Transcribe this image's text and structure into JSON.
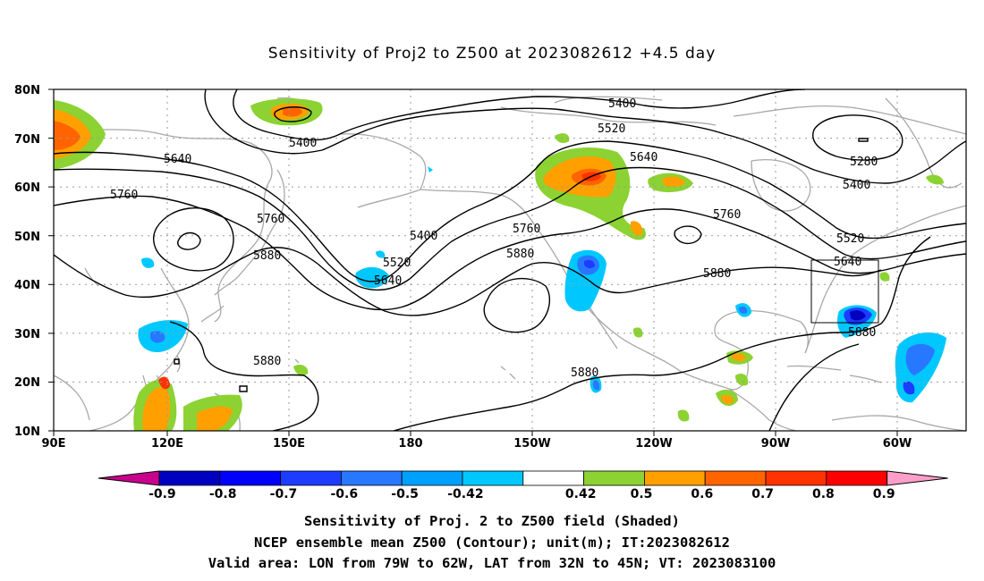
{
  "title": "Sensitivity of Proj2 to Z500 at 2023082612 +4.5 day",
  "lat_labels": [
    "80N",
    "70N",
    "60N",
    "50N",
    "40N",
    "30N",
    "20N",
    "10N"
  ],
  "lon_labels": [
    "90E",
    "120E",
    "150E",
    "180",
    "150W",
    "120W",
    "90W",
    "60W"
  ],
  "contour_labels": [
    {
      "text": "5400"
    },
    {
      "text": "5520"
    },
    {
      "text": "5640"
    },
    {
      "text": "5280"
    },
    {
      "text": "5400"
    },
    {
      "text": "5400"
    },
    {
      "text": "5640"
    },
    {
      "text": "5760"
    },
    {
      "text": "5760"
    },
    {
      "text": "5880"
    },
    {
      "text": "5400"
    },
    {
      "text": "5520"
    },
    {
      "text": "5640"
    },
    {
      "text": "5760"
    },
    {
      "text": "5880"
    },
    {
      "text": "5760"
    },
    {
      "text": "5520"
    },
    {
      "text": "5640"
    },
    {
      "text": "5880"
    },
    {
      "text": "5880"
    },
    {
      "text": "5880"
    },
    {
      "text": "5880"
    }
  ],
  "colorbar": {
    "labels": [
      "-0.9",
      "-0.8",
      "-0.7",
      "-0.6",
      "-0.5",
      "-0.42",
      "0.42",
      "0.5",
      "0.6",
      "0.7",
      "0.8",
      "0.9"
    ],
    "colors": {
      "neg_end": "#c8008c",
      "bins": [
        "#0000c0",
        "#0000ff",
        "#1e3cff",
        "#2878ff",
        "#00a0ff",
        "#00c8ff",
        "#ffffff",
        "#8cd232",
        "#ffa000",
        "#ff6400",
        "#ff3200",
        "#ff0000"
      ],
      "pos_end": "#ff9ec8"
    }
  },
  "captions": [
    "Sensitivity of Proj. 2 to Z500 field (Shaded)",
    "NCEP ensemble mean Z500 (Contour); unit(m); IT:2023082612",
    "Valid area: LON from 79W to 62W, LAT from 32N to 45N; VT: 2023083100"
  ]
}
